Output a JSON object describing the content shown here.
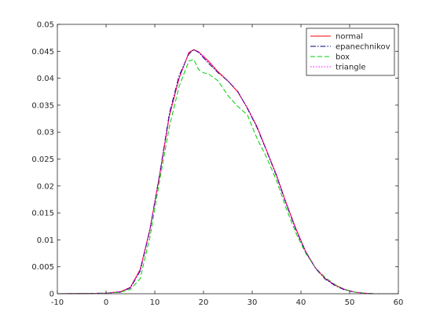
{
  "chart_data": {
    "type": "line",
    "title": "",
    "xlabel": "",
    "ylabel": "",
    "xlim": [
      -10,
      60
    ],
    "ylim": [
      0,
      0.05
    ],
    "x_ticks": [
      -10,
      0,
      10,
      20,
      30,
      40,
      50,
      60
    ],
    "y_ticks": [
      0,
      0.005,
      0.01,
      0.015,
      0.02,
      0.025,
      0.03,
      0.035,
      0.04,
      0.045,
      0.05
    ],
    "grid": false,
    "legend_position": "top-right",
    "series": [
      {
        "name": "normal",
        "color": "#ff0000",
        "style": "solid",
        "x": [
          -10,
          -5,
          0,
          3,
          5,
          7,
          9,
          11,
          13,
          15,
          17,
          18,
          19,
          21,
          23,
          25,
          27,
          29,
          31,
          33,
          35,
          37,
          39,
          41,
          43,
          45,
          47,
          49,
          51,
          53,
          55,
          60
        ],
        "y": [
          0,
          5e-05,
          0.0001,
          0.0004,
          0.0012,
          0.0045,
          0.012,
          0.022,
          0.033,
          0.04,
          0.0448,
          0.0453,
          0.0449,
          0.0432,
          0.0412,
          0.0395,
          0.0375,
          0.0345,
          0.031,
          0.0265,
          0.022,
          0.0168,
          0.012,
          0.0078,
          0.0048,
          0.0028,
          0.0016,
          0.0008,
          0.0003,
          0.0001,
          0,
          0
        ]
      },
      {
        "name": "epanechnikov",
        "color": "#00007f",
        "style": "dashdot",
        "x": [
          -10,
          -5,
          0,
          3,
          5,
          7,
          9,
          11,
          13,
          15,
          17,
          18,
          19,
          21,
          23,
          25,
          27,
          29,
          31,
          33,
          35,
          37,
          39,
          41,
          43,
          45,
          47,
          49,
          51,
          53,
          55,
          60
        ],
        "y": [
          0,
          5e-05,
          0.0001,
          0.0003,
          0.0011,
          0.0042,
          0.0118,
          0.0222,
          0.0335,
          0.0405,
          0.0445,
          0.0453,
          0.0448,
          0.0428,
          0.041,
          0.0395,
          0.0376,
          0.0344,
          0.0308,
          0.0264,
          0.0218,
          0.0166,
          0.0118,
          0.0077,
          0.0047,
          0.0027,
          0.0015,
          0.0007,
          0.0003,
          0.0001,
          0,
          0
        ]
      },
      {
        "name": "box",
        "color": "#00cc00",
        "style": "dashed",
        "x": [
          -10,
          -5,
          0,
          3,
          5,
          7,
          9,
          11,
          13,
          15,
          17,
          18,
          19,
          20,
          21,
          23,
          25,
          27,
          29,
          31,
          33,
          35,
          37,
          39,
          41,
          43,
          45,
          47,
          49,
          51,
          53,
          55,
          60
        ],
        "y": [
          0,
          5e-05,
          0.0001,
          0.0003,
          0.0008,
          0.0028,
          0.0105,
          0.021,
          0.031,
          0.0385,
          0.0432,
          0.0435,
          0.0416,
          0.041,
          0.0408,
          0.0395,
          0.0368,
          0.0348,
          0.0332,
          0.0288,
          0.0252,
          0.021,
          0.0158,
          0.0112,
          0.0075,
          0.0048,
          0.003,
          0.0017,
          0.0008,
          0.0003,
          0.0001,
          0,
          0
        ]
      },
      {
        "name": "triangle",
        "color": "#ff00ff",
        "style": "dotted",
        "x": [
          -10,
          -5,
          0,
          3,
          5,
          7,
          9,
          11,
          13,
          15,
          17,
          18,
          19,
          21,
          23,
          25,
          27,
          29,
          31,
          33,
          35,
          37,
          39,
          41,
          43,
          45,
          47,
          49,
          51,
          53,
          55,
          60
        ],
        "y": [
          0,
          5e-05,
          0.0001,
          0.0004,
          0.0012,
          0.0044,
          0.0119,
          0.0221,
          0.0331,
          0.0401,
          0.0447,
          0.0452,
          0.0449,
          0.043,
          0.0411,
          0.0395,
          0.0376,
          0.0345,
          0.0309,
          0.0265,
          0.0219,
          0.0167,
          0.0119,
          0.0078,
          0.0048,
          0.0028,
          0.0016,
          0.0008,
          0.0003,
          0.0001,
          0,
          0
        ]
      }
    ]
  }
}
